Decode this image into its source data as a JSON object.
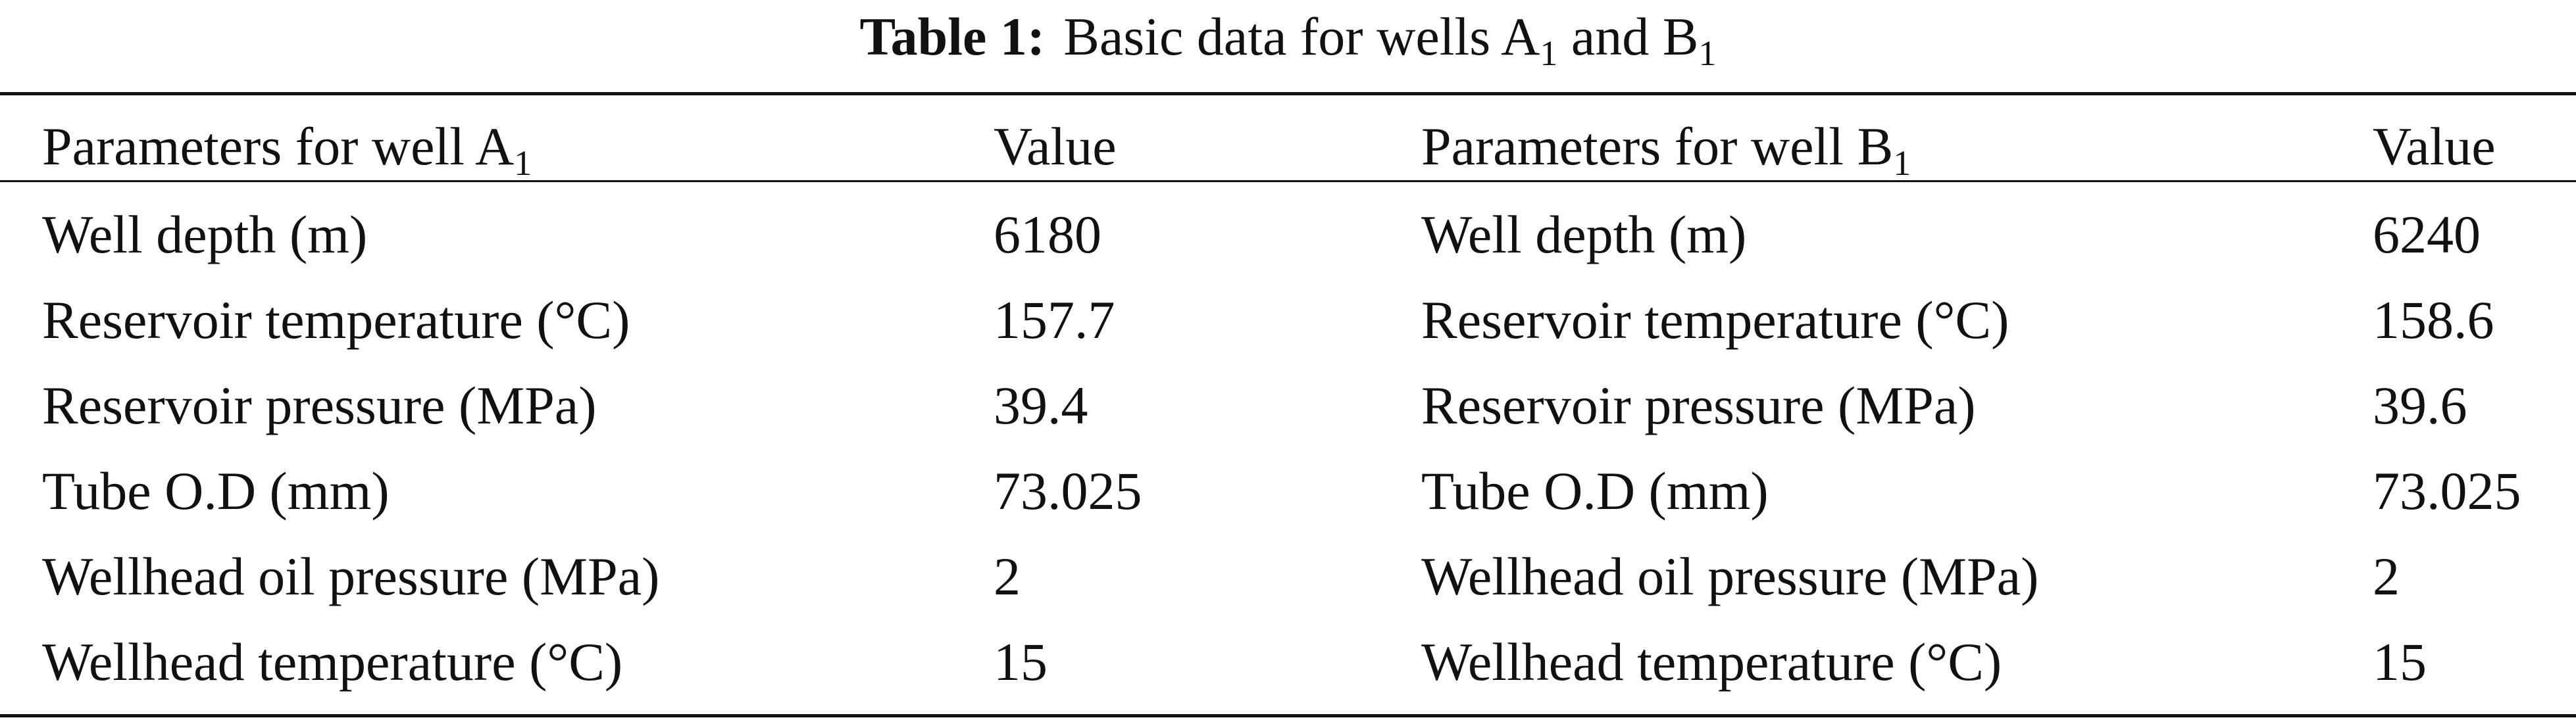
{
  "caption": {
    "label": "Table 1:",
    "text_before": "Basic data for wells A",
    "sub_a": "1",
    "text_mid": " and B",
    "sub_b": "1"
  },
  "header": {
    "col1_text": "Parameters for well A",
    "col1_sub": "1",
    "col2": "Value",
    "col3_text": "Parameters for well B",
    "col3_sub": "1",
    "col4": "Value"
  },
  "rows": [
    {
      "param_a": "Well depth (m)",
      "value_a": "6180",
      "param_b": "Well depth (m)",
      "value_b": "6240"
    },
    {
      "param_a": "Reservoir temperature (°C)",
      "value_a": "157.7",
      "param_b": "Reservoir temperature (°C)",
      "value_b": "158.6"
    },
    {
      "param_a": "Reservoir pressure (MPa)",
      "value_a": "39.4",
      "param_b": "Reservoir pressure (MPa)",
      "value_b": "39.6"
    },
    {
      "param_a": "Tube O.D (mm)",
      "value_a": "73.025",
      "param_b": "Tube O.D (mm)",
      "value_b": "73.025"
    },
    {
      "param_a": "Wellhead oil pressure (MPa)",
      "value_a": "2",
      "param_b": "Wellhead oil pressure (MPa)",
      "value_b": "2"
    },
    {
      "param_a": "Wellhead temperature (°C)",
      "value_a": "15",
      "param_b": "Wellhead temperature (°C)",
      "value_b": "15"
    }
  ]
}
